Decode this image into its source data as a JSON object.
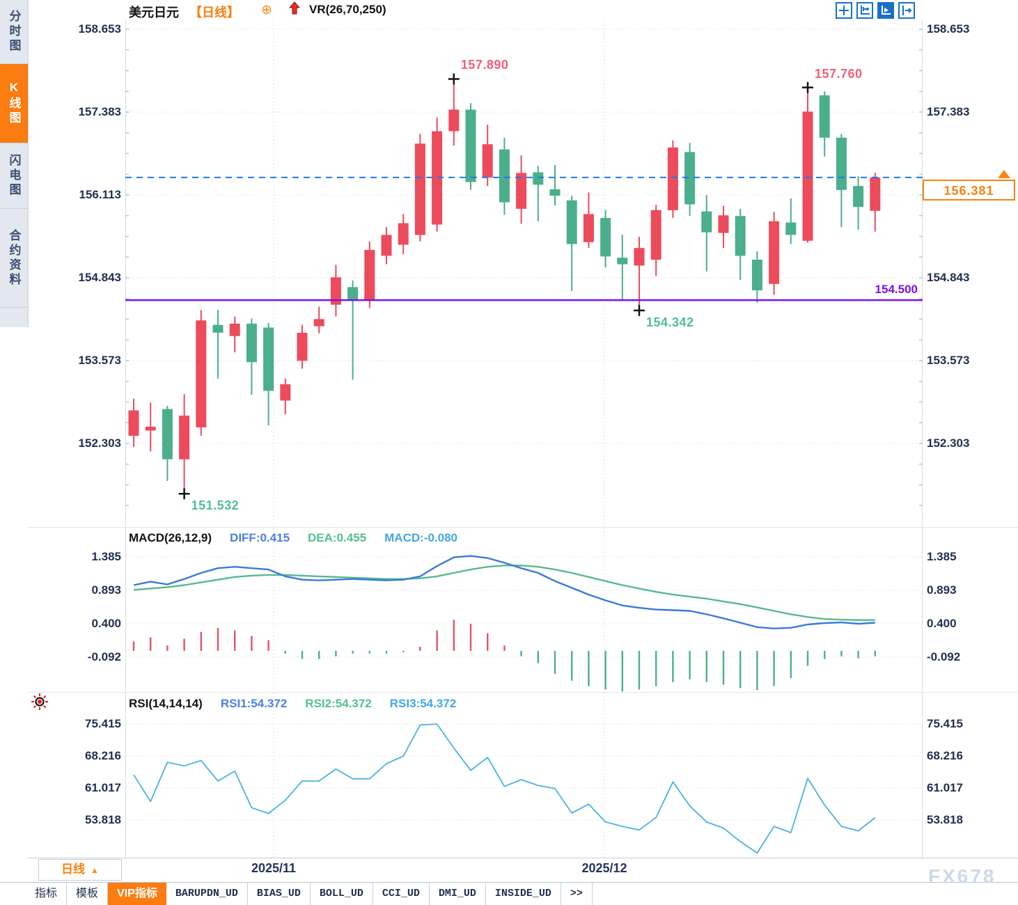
{
  "sidebar": {
    "tabs": [
      {
        "label": "分时图",
        "active": false
      },
      {
        "label": "K线图",
        "active": true
      },
      {
        "label": "闪电图",
        "active": false
      },
      {
        "label": "合约资料",
        "active": false
      }
    ]
  },
  "header": {
    "symbol": "美元日元",
    "period_tag": "【日线】",
    "add_icon": "⊕",
    "indicator": "VR(26,70,250)",
    "icons": [
      "move-icon",
      "axis-range-icon",
      "axis-play-icon",
      "axis-shift-icon"
    ]
  },
  "main_chart": {
    "y_labels": [
      "158.653",
      "157.383",
      "156.113",
      "154.843",
      "153.573",
      "152.303"
    ],
    "current_price": "156.381",
    "support_line": {
      "value": 154.5,
      "label": "154.500"
    },
    "annotations": [
      {
        "text": "157.890",
        "index": 19,
        "anchor": "high"
      },
      {
        "text": "157.760",
        "index": 40,
        "anchor": "high"
      },
      {
        "text": "151.532",
        "index": 3,
        "anchor": "low"
      },
      {
        "text": "154.342",
        "index": 30,
        "anchor": "low"
      }
    ]
  },
  "macd_panel": {
    "title": "MACD(26,12,9)",
    "diff_label": "DIFF:0.415",
    "dea_label": "DEA:0.455",
    "macd_label": "MACD:-0.080",
    "y_labels": [
      "1.385",
      "0.893",
      "0.400",
      "-0.092"
    ]
  },
  "rsi_panel": {
    "title": "RSI(14,14,14)",
    "rsi1_label": "RSI1:54.372",
    "rsi2_label": "RSI2:54.372",
    "rsi3_label": "RSI3:54.372",
    "y_labels": [
      "75.415",
      "68.216",
      "61.017",
      "53.818"
    ]
  },
  "x_axis": {
    "dates": [
      "2025/11",
      "2025/12"
    ]
  },
  "period_selector": {
    "label": "日线",
    "arrow": "▲"
  },
  "bottom_tabs": [
    {
      "label": "指标",
      "active": false,
      "mono": false
    },
    {
      "label": "模板",
      "active": false,
      "mono": false
    },
    {
      "label": "VIP指标",
      "active": true,
      "mono": false
    },
    {
      "label": "BARUPDN_UD",
      "active": false,
      "mono": true
    },
    {
      "label": "BIAS_UD",
      "active": false,
      "mono": true
    },
    {
      "label": "BOLL_UD",
      "active": false,
      "mono": true
    },
    {
      "label": "CCI_UD",
      "active": false,
      "mono": true
    },
    {
      "label": "DMI_UD",
      "active": false,
      "mono": true
    },
    {
      "label": "INSIDE_UD",
      "active": false,
      "mono": true
    },
    {
      "label": ">>",
      "active": false,
      "mono": true
    }
  ],
  "watermark": "FX678",
  "colors": {
    "up_candle": "#ec4b5c",
    "down_candle": "#4bae8c",
    "current_price_line": "#1f79e6",
    "support_line": "#7b10e8",
    "accent_orange": "#fb7c10",
    "diff_line": "#3a7ad8",
    "dea_line": "#56b98e",
    "rsi_line": "#49b2e2",
    "annotation_high": "#ef5f78",
    "annotation_low": "#4fbd9c",
    "axis_text": "#20304f"
  },
  "chart_data": {
    "type": "candlestick",
    "symbol": "USD/JPY 美元日元",
    "period": "daily 日线",
    "x_gridline_dates": [
      "2025/11",
      "2025/12"
    ],
    "price_axis_ticks": [
      158.653,
      157.383,
      156.113,
      154.843,
      153.573,
      152.303
    ],
    "current_price": 156.381,
    "support_level": 154.5,
    "marked_high_1": 157.89,
    "marked_high_2": 157.76,
    "marked_low_1": 151.532,
    "marked_low_2": 154.342,
    "candles_ohlc": [
      [
        152.42,
        152.99,
        152.25,
        152.81
      ],
      [
        152.5,
        152.93,
        152.18,
        152.56
      ],
      [
        152.83,
        152.88,
        151.73,
        152.06
      ],
      [
        152.06,
        153.06,
        151.532,
        152.73
      ],
      [
        152.55,
        154.35,
        152.42,
        154.19
      ],
      [
        154.12,
        154.35,
        153.3,
        154.0
      ],
      [
        153.95,
        154.25,
        153.7,
        154.14
      ],
      [
        154.14,
        154.22,
        153.05,
        153.55
      ],
      [
        154.08,
        154.15,
        152.58,
        153.11
      ],
      [
        152.96,
        153.3,
        152.75,
        153.21
      ],
      [
        153.57,
        154.12,
        153.45,
        154.0
      ],
      [
        154.1,
        154.4,
        153.99,
        154.21
      ],
      [
        154.43,
        155.04,
        154.25,
        154.85
      ],
      [
        154.7,
        154.8,
        153.28,
        154.51
      ],
      [
        154.51,
        155.4,
        154.38,
        155.27
      ],
      [
        155.18,
        155.62,
        155.05,
        155.5
      ],
      [
        155.35,
        155.82,
        155.2,
        155.68
      ],
      [
        155.5,
        157.05,
        155.4,
        156.9
      ],
      [
        155.66,
        157.3,
        155.55,
        157.09
      ],
      [
        157.09,
        157.89,
        156.87,
        157.42
      ],
      [
        157.42,
        157.52,
        156.19,
        156.31
      ],
      [
        156.38,
        157.19,
        156.25,
        156.89
      ],
      [
        156.81,
        156.99,
        155.81,
        156.0
      ],
      [
        155.9,
        156.72,
        155.67,
        156.45
      ],
      [
        156.46,
        156.56,
        155.71,
        156.27
      ],
      [
        156.2,
        156.57,
        155.95,
        156.1
      ],
      [
        156.03,
        156.1,
        154.64,
        155.36
      ],
      [
        155.39,
        156.15,
        155.3,
        155.82
      ],
      [
        155.76,
        155.88,
        155.0,
        155.17
      ],
      [
        155.15,
        155.5,
        154.51,
        155.05
      ],
      [
        155.03,
        155.47,
        154.342,
        155.3
      ],
      [
        155.12,
        155.96,
        154.87,
        155.88
      ],
      [
        155.88,
        156.95,
        155.76,
        156.84
      ],
      [
        156.77,
        156.91,
        155.79,
        155.97
      ],
      [
        155.86,
        156.11,
        154.94,
        155.54
      ],
      [
        155.53,
        155.95,
        155.3,
        155.8
      ],
      [
        155.79,
        155.9,
        154.81,
        155.18
      ],
      [
        155.12,
        155.25,
        154.46,
        154.65
      ],
      [
        154.75,
        155.85,
        154.58,
        155.71
      ],
      [
        155.69,
        156.06,
        155.36,
        155.5
      ],
      [
        155.41,
        157.76,
        155.38,
        157.39
      ],
      [
        157.64,
        157.7,
        156.7,
        156.99
      ],
      [
        156.99,
        157.05,
        155.62,
        156.19
      ],
      [
        156.25,
        156.4,
        155.58,
        155.93
      ],
      [
        155.87,
        156.45,
        155.55,
        156.381
      ]
    ],
    "up_color_convention": "red = close >= open (Chinese convention), green = down",
    "macd": {
      "params": "26,12,9",
      "axis_ticks": [
        1.385,
        0.893,
        0.4,
        -0.092
      ],
      "last_diff": 0.415,
      "last_dea": 0.455,
      "last_macd": -0.08,
      "diff": [
        0.97,
        1.02,
        0.98,
        1.06,
        1.15,
        1.22,
        1.24,
        1.22,
        1.2,
        1.1,
        1.05,
        1.04,
        1.05,
        1.06,
        1.05,
        1.04,
        1.05,
        1.1,
        1.25,
        1.38,
        1.4,
        1.37,
        1.3,
        1.22,
        1.15,
        1.03,
        0.93,
        0.83,
        0.745,
        0.67,
        0.635,
        0.61,
        0.6,
        0.59,
        0.54,
        0.48,
        0.415,
        0.35,
        0.33,
        0.34,
        0.39,
        0.41,
        0.42,
        0.4,
        0.415
      ],
      "dea": [
        0.9,
        0.92,
        0.94,
        0.97,
        1.01,
        1.05,
        1.09,
        1.11,
        1.12,
        1.12,
        1.11,
        1.1,
        1.09,
        1.08,
        1.07,
        1.06,
        1.06,
        1.07,
        1.1,
        1.15,
        1.2,
        1.24,
        1.26,
        1.26,
        1.24,
        1.2,
        1.15,
        1.09,
        1.03,
        0.97,
        0.92,
        0.87,
        0.83,
        0.8,
        0.77,
        0.73,
        0.69,
        0.64,
        0.59,
        0.54,
        0.5,
        0.47,
        0.46,
        0.455,
        0.455
      ],
      "histogram_rule": "2*(diff-dea)"
    },
    "rsi": {
      "params": "14,14,14",
      "axis_ticks": [
        75.415,
        68.216,
        61.017,
        53.818
      ],
      "last_value": 54.372,
      "values": [
        64.0,
        58.0,
        66.8,
        66.0,
        67.2,
        62.6,
        64.8,
        56.6,
        55.3,
        58.3,
        62.6,
        62.6,
        65.3,
        63.1,
        63.1,
        66.5,
        68.2,
        75.2,
        75.4,
        70.0,
        65.0,
        67.9,
        61.4,
        62.9,
        61.6,
        60.9,
        55.4,
        57.4,
        53.4,
        52.4,
        51.6,
        54.4,
        62.4,
        57.0,
        53.4,
        52.0,
        49.0,
        46.4,
        52.4,
        51.0,
        63.2,
        57.2,
        52.4,
        51.4,
        54.372
      ]
    }
  }
}
